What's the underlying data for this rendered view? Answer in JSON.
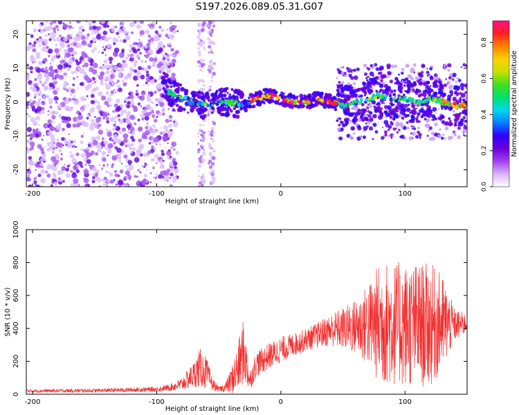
{
  "title": "S197.2026.089.05.31.G07",
  "colors": {
    "axis": "#000000",
    "snr_line": "#f03030",
    "colormap": [
      "#ffffff",
      "#d9b3ff",
      "#a040f0",
      "#6a00d8",
      "#3000ff",
      "#0080ff",
      "#00d8f0",
      "#00e070",
      "#40e020",
      "#c8e000",
      "#ffd000",
      "#ff8000",
      "#ff2020",
      "#ff1080"
    ]
  },
  "chart_data": [
    {
      "id": "spectrogram",
      "type": "heatmap",
      "xlabel": "Height of straight line (km)",
      "ylabel": "Frequency (Hz)",
      "xlim": [
        -205,
        150
      ],
      "ylim": [
        -25,
        24
      ],
      "xticks": [
        -200,
        -100,
        0,
        100
      ],
      "yticks": [
        -20,
        -10,
        0,
        10,
        20
      ],
      "colorbar": {
        "label": "Normalized spectral amplitude",
        "range": [
          0.0,
          0.92
        ],
        "ticks": [
          "0.0",
          "0.2",
          "0.4",
          "0.6",
          "0.8"
        ],
        "tick_values": [
          0.0,
          0.2,
          0.4,
          0.6,
          0.8
        ]
      },
      "description_points": {
        "noise_region_x": [
          -205,
          -95
        ],
        "signal_trace": {
          "x": [
            -95,
            -90,
            -80,
            -70,
            -60,
            -50,
            -40,
            -30,
            -20,
            -10,
            0,
            10,
            20,
            30,
            40,
            50,
            60,
            70,
            80,
            90,
            100,
            110,
            120,
            130,
            140,
            150
          ],
          "y": [
            5,
            3,
            1,
            0,
            -1,
            0,
            0,
            -1,
            1,
            2,
            1,
            0,
            0,
            1,
            0,
            -1,
            0,
            1,
            2,
            1,
            1,
            0,
            1,
            0,
            -1,
            -1
          ]
        }
      }
    },
    {
      "id": "snr",
      "type": "line",
      "xlabel": "Height of straight line (km)",
      "ylabel": "SNR (10 * v/v)",
      "xlim": [
        -205,
        150
      ],
      "ylim": [
        0,
        1000
      ],
      "xticks": [
        -200,
        -100,
        0,
        100
      ],
      "yticks": [
        0,
        200,
        400,
        600,
        800,
        1000
      ],
      "series": [
        {
          "name": "SNR",
          "envelope_x": [
            -205,
            -150,
            -100,
            -90,
            -80,
            -70,
            -65,
            -60,
            -55,
            -50,
            -45,
            -40,
            -35,
            -30,
            -25,
            -20,
            -10,
            0,
            10,
            20,
            30,
            40,
            50,
            60,
            70,
            80,
            90,
            100,
            110,
            120,
            130,
            140,
            150
          ],
          "mean": [
            20,
            22,
            30,
            40,
            60,
            120,
            160,
            130,
            60,
            30,
            40,
            80,
            150,
            260,
            80,
            180,
            230,
            270,
            300,
            330,
            360,
            390,
            400,
            410,
            420,
            430,
            430,
            420,
            420,
            420,
            430,
            420,
            430
          ],
          "amplitude": [
            10,
            12,
            15,
            20,
            40,
            80,
            120,
            100,
            40,
            15,
            30,
            80,
            150,
            200,
            60,
            80,
            80,
            80,
            70,
            70,
            80,
            100,
            130,
            170,
            250,
            380,
            380,
            380,
            380,
            380,
            300,
            100,
            60
          ]
        }
      ]
    }
  ]
}
